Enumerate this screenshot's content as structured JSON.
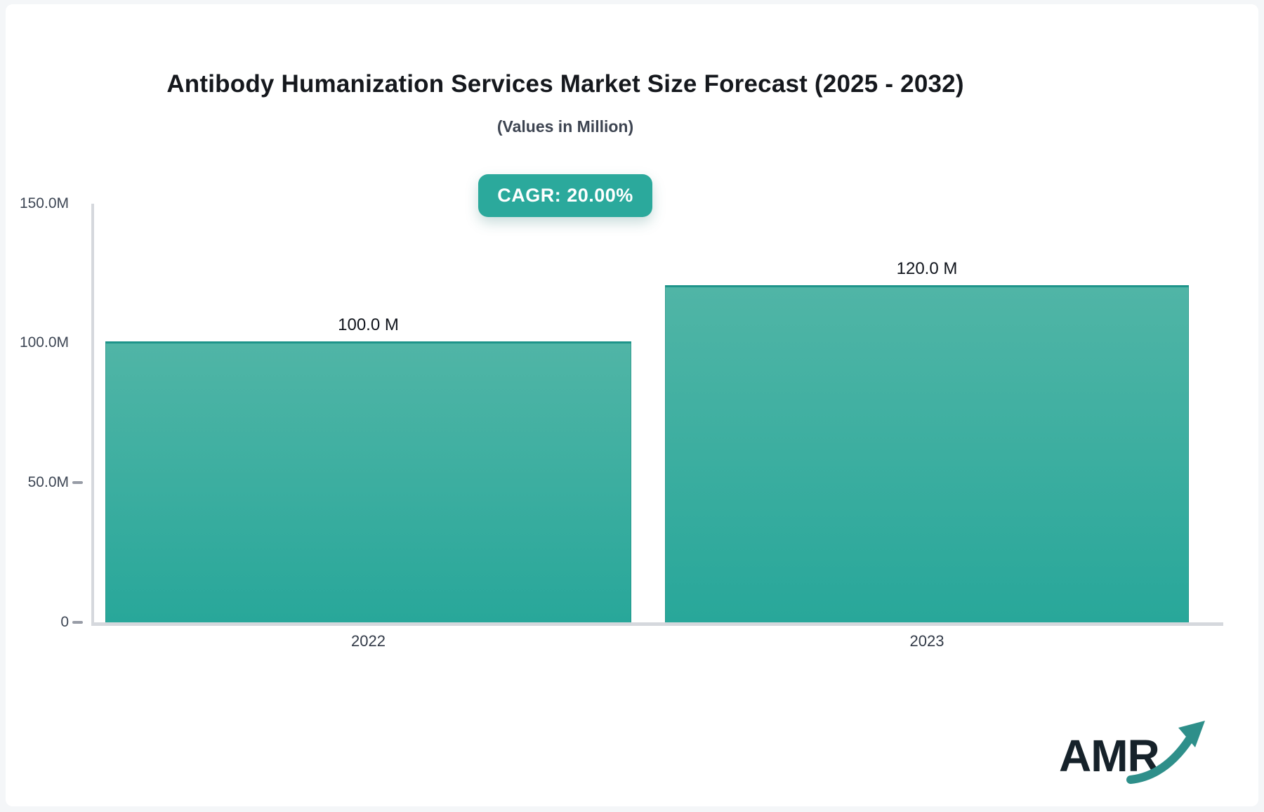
{
  "page": {
    "background": "#f4f6f8",
    "card_background": "#ffffff"
  },
  "header": {
    "title": "Antibody Humanization Services Market Size Forecast (2025 - 2032)",
    "subtitle": "(Values in Million)",
    "cagr_badge": "CAGR: 20.00%"
  },
  "chart_data": {
    "type": "bar",
    "title": "Antibody Humanization Services Market Size Forecast (2025 - 2032)",
    "subtitle": "(Values in Million)",
    "cagr_percent": "20.00%",
    "categories": [
      "2022",
      "2023"
    ],
    "values": [
      100.0,
      120.0
    ],
    "value_labels": [
      "100.0 M",
      "120.0 M"
    ],
    "ylim": [
      0,
      150
    ],
    "y_ticks": [
      {
        "label": "150.0M",
        "value": 150
      },
      {
        "label": "100.0M",
        "value": 100
      },
      {
        "label": "50.0M",
        "value": 50
      },
      {
        "label": "0",
        "value": 0
      }
    ],
    "grid": false,
    "legend": null,
    "bar_color_top": "#50b5a6",
    "bar_color_bottom": "#28a79a"
  },
  "colors": {
    "badge_bg": "#2ba99c",
    "badge_text": "#ffffff",
    "axis_line": "#d5d8dd",
    "tick_dash": "#979ca6",
    "bar_border_top": "#1e948a",
    "value_label_text": "#10141c",
    "axis_text": "#3d4654",
    "logo_text": "#16222a",
    "logo_arrow": "#2e8f8a"
  },
  "logo": {
    "text": "AMR"
  }
}
